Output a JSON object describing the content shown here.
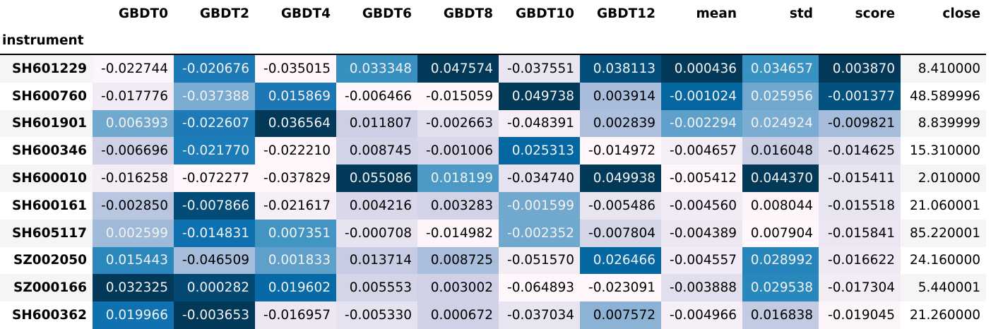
{
  "columns": [
    "GBDT0",
    "GBDT2",
    "GBDT4",
    "GBDT6",
    "GBDT8",
    "GBDT10",
    "GBDT12",
    "mean",
    "std",
    "score",
    "close"
  ],
  "index_name": "instrument",
  "rows": [
    {
      "instrument": "SH601229",
      "values": [
        "-0.022744",
        "-0.020676",
        "-0.035015",
        "0.033348",
        "0.047574",
        "-0.037551",
        "0.038113",
        "0.000436",
        "0.034657",
        "0.003870",
        "8.410000"
      ],
      "bg": [
        "#fbf6fb",
        "#1e7ab7",
        "#fff7fb",
        "#3790c0",
        "#023858",
        "#e9e6f2",
        "#034e7b",
        "#023858",
        "#3893c2",
        "#023858",
        ""
      ],
      "fg": [
        "#000000",
        "#f1f1f1",
        "#000000",
        "#f1f1f1",
        "#f1f1f1",
        "#000000",
        "#f1f1f1",
        "#f1f1f1",
        "#f1f1f1",
        "#f1f1f1",
        "#000000"
      ]
    },
    {
      "instrument": "SH600760",
      "values": [
        "-0.017776",
        "-0.037388",
        "0.015869",
        "-0.006466",
        "-0.015059",
        "0.049738",
        "0.003914",
        "-0.001024",
        "0.025956",
        "-0.001377",
        "48.589996"
      ],
      "bg": [
        "#f0ebf4",
        "#7aabd0",
        "#1d77b4",
        "#fff7fb",
        "#fff7fb",
        "#023858",
        "#a7bddb",
        "#0566a0",
        "#6fa7ce",
        "#03517e",
        ""
      ],
      "fg": [
        "#000000",
        "#f1f1f1",
        "#f1f1f1",
        "#000000",
        "#000000",
        "#f1f1f1",
        "#000000",
        "#f1f1f1",
        "#f1f1f1",
        "#f1f1f1",
        "#000000"
      ]
    },
    {
      "instrument": "SH601901",
      "values": [
        "0.006393",
        "-0.022607",
        "0.036564",
        "0.011807",
        "-0.002663",
        "-0.048391",
        "0.002839",
        "-0.002294",
        "0.024924",
        "-0.009821",
        "8.839999"
      ],
      "bg": [
        "#71a8ce",
        "#1d7ab6",
        "#023858",
        "#cdd0e5",
        "#e1dfed",
        "#f5eef6",
        "#acc0dd",
        "#5ea0ca",
        "#7bacd1",
        "#a5bddb",
        ""
      ],
      "fg": [
        "#f1f1f1",
        "#f1f1f1",
        "#f1f1f1",
        "#000000",
        "#000000",
        "#000000",
        "#000000",
        "#f1f1f1",
        "#f1f1f1",
        "#000000",
        "#000000"
      ]
    },
    {
      "instrument": "SH600346",
      "values": [
        "-0.006696",
        "-0.021770",
        "-0.022210",
        "0.008745",
        "-0.001006",
        "0.025313",
        "-0.014972",
        "-0.004657",
        "0.016048",
        "-0.014625",
        "15.310000"
      ],
      "bg": [
        "#d0d1e6",
        "#1c7cb7",
        "#fff7fb",
        "#d4d4e8",
        "#d8d7e9",
        "#0567a1",
        "#fff7fb",
        "#f4eef6",
        "#c9cee4",
        "#e0dded",
        ""
      ],
      "fg": [
        "#000000",
        "#f1f1f1",
        "#000000",
        "#000000",
        "#000000",
        "#f1f1f1",
        "#000000",
        "#000000",
        "#000000",
        "#000000",
        "#000000"
      ]
    },
    {
      "instrument": "SH600010",
      "values": [
        "-0.016258",
        "-0.072277",
        "-0.037829",
        "0.055086",
        "0.018199",
        "-0.034740",
        "0.049938",
        "-0.005412",
        "0.044370",
        "-0.015411",
        "2.010000"
      ],
      "bg": [
        "#f3edf5",
        "#fff7fb",
        "#fff7fb",
        "#023858",
        "#4c99c5",
        "#e6e2ef",
        "#023858",
        "#fff7fb",
        "#023858",
        "#e8e4f0",
        ""
      ],
      "fg": [
        "#000000",
        "#000000",
        "#000000",
        "#f1f1f1",
        "#f1f1f1",
        "#000000",
        "#f1f1f1",
        "#000000",
        "#f1f1f1",
        "#000000",
        "#000000"
      ]
    },
    {
      "instrument": "SH600161",
      "values": [
        "-0.002850",
        "-0.007866",
        "-0.021617",
        "0.004216",
        "0.003283",
        "-0.001599",
        "-0.005486",
        "-0.004560",
        "0.008044",
        "-0.015518",
        "21.060001"
      ],
      "bg": [
        "#b8c6e0",
        "#034c78",
        "#f6eff7",
        "#d9d8ea",
        "#d2d3e7",
        "#71a8ce",
        "#e8e4f0",
        "#f1ebf5",
        "#fdf5fa",
        "#e8e4f0",
        ""
      ],
      "fg": [
        "#000000",
        "#f1f1f1",
        "#000000",
        "#000000",
        "#000000",
        "#f1f1f1",
        "#000000",
        "#000000",
        "#000000",
        "#000000",
        "#000000"
      ]
    },
    {
      "instrument": "SH605117",
      "values": [
        "0.002599",
        "-0.014831",
        "0.007351",
        "-0.000708",
        "-0.014982",
        "-0.002352",
        "-0.007804",
        "-0.004389",
        "0.007904",
        "-0.015841",
        "85.220001"
      ],
      "bg": [
        "#9fbad9",
        "#0f70b0",
        "#4295c3",
        "#e7e3f0",
        "#fdf5fa",
        "#71a8ce",
        "#d5d5e8",
        "#ede7f2",
        "#fff7fb",
        "#ebe6f2",
        ""
      ],
      "fg": [
        "#f1f1f1",
        "#f1f1f1",
        "#f1f1f1",
        "#000000",
        "#000000",
        "#f1f1f1",
        "#000000",
        "#000000",
        "#000000",
        "#000000",
        "#000000"
      ]
    },
    {
      "instrument": "SZ002050",
      "values": [
        "0.015443",
        "-0.046509",
        "0.001833",
        "0.013714",
        "0.008725",
        "-0.051570",
        "0.026466",
        "-0.004557",
        "0.028992",
        "-0.016622",
        "24.160000"
      ],
      "bg": [
        "#2a88bc",
        "#a5bddb",
        "#5ea0ca",
        "#c5cce3",
        "#a8bedc",
        "#f2ecf5",
        "#0568a3",
        "#f1ebf5",
        "#2685bb",
        "#efe9f3",
        ""
      ],
      "fg": [
        "#f1f1f1",
        "#000000",
        "#f1f1f1",
        "#000000",
        "#000000",
        "#000000",
        "#f1f1f1",
        "#000000",
        "#f1f1f1",
        "#000000",
        "#000000"
      ]
    },
    {
      "instrument": "SZ000166",
      "values": [
        "0.032325",
        "0.000282",
        "0.019602",
        "0.005553",
        "0.003002",
        "-0.064893",
        "-0.023091",
        "-0.003888",
        "0.029538",
        "-0.017304",
        "5.440001"
      ],
      "bg": [
        "#023858",
        "#034973",
        "#0769a5",
        "#d5d5e8",
        "#d0d1e6",
        "#fff7fb",
        "#fff7fb",
        "#e1dfed",
        "#2888bc",
        "#f2ecf5",
        ""
      ],
      "fg": [
        "#f1f1f1",
        "#f1f1f1",
        "#f1f1f1",
        "#000000",
        "#000000",
        "#000000",
        "#000000",
        "#000000",
        "#f1f1f1",
        "#000000",
        "#000000"
      ]
    },
    {
      "instrument": "SH600362",
      "values": [
        "0.019966",
        "-0.003653",
        "-0.016957",
        "-0.005330",
        "0.000672",
        "-0.037034",
        "0.007572",
        "-0.004966",
        "0.016838",
        "-0.019045",
        "21.260000"
      ],
      "bg": [
        "#0f71b0",
        "#023858",
        "#ece7f2",
        "#e6e2ef",
        "#d0d1e6",
        "#e8e4f0",
        "#8cb3d5",
        "#f6eff7",
        "#c2cbe2",
        "#fbf4f9",
        ""
      ],
      "fg": [
        "#f1f1f1",
        "#f1f1f1",
        "#000000",
        "#000000",
        "#000000",
        "#000000",
        "#000000",
        "#000000",
        "#000000",
        "#000000",
        "#000000"
      ]
    }
  ]
}
